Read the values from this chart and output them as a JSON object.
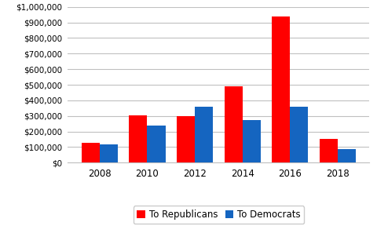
{
  "years": [
    "2008",
    "2010",
    "2012",
    "2014",
    "2016",
    "2018"
  ],
  "republicans": [
    130000,
    305000,
    300000,
    490000,
    940000,
    155000
  ],
  "democrats": [
    120000,
    240000,
    360000,
    275000,
    360000,
    85000
  ],
  "rep_color": "#FF0000",
  "dem_color": "#1565C0",
  "ylim": [
    0,
    1000000
  ],
  "yticks": [
    0,
    100000,
    200000,
    300000,
    400000,
    500000,
    600000,
    700000,
    800000,
    900000,
    1000000
  ],
  "legend_labels": [
    "To Republicans",
    "To Democrats"
  ],
  "background_color": "#FFFFFF",
  "grid_color": "#C0C0C0",
  "bar_width": 0.38
}
